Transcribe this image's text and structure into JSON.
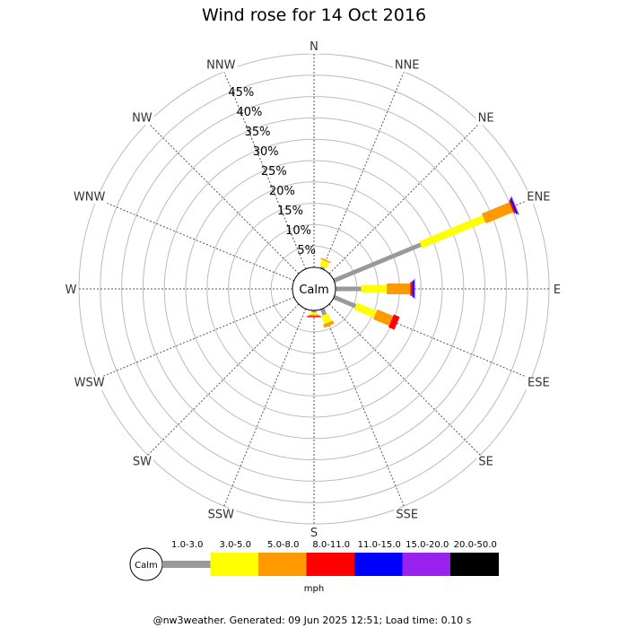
{
  "chart_data": {
    "type": "wind-rose",
    "title": "Wind rose for 14 Oct 2016",
    "directions": [
      "N",
      "NNE",
      "NE",
      "ENE",
      "E",
      "ESE",
      "SE",
      "SSE",
      "S",
      "SSW",
      "SW",
      "WSW",
      "W",
      "WNW",
      "NW",
      "NNW"
    ],
    "radial_ticks": [
      "5%",
      "10%",
      "15%",
      "20%",
      "25%",
      "30%",
      "35%",
      "40%",
      "45%"
    ],
    "radial_max": 50,
    "calm_label": "Calm",
    "units": "mph",
    "bins": [
      {
        "label": "1.0-3.0",
        "color": "#999999"
      },
      {
        "label": "3.0-5.0",
        "color": "#ffff00"
      },
      {
        "label": "5.0-8.0",
        "color": "#ff9900"
      },
      {
        "label": "8.0-11.0",
        "color": "#ff0000"
      },
      {
        "label": "11.0-15.0",
        "color": "#0000ff"
      },
      {
        "label": "15.0-20.0",
        "color": "#9922ee"
      },
      {
        "label": "20.0-50.0",
        "color": "#000000"
      }
    ],
    "series": [
      {
        "direction": "NNE",
        "values": [
          0.5,
          1.5,
          0.3,
          0,
          0,
          0,
          0
        ]
      },
      {
        "direction": "ENE",
        "values": [
          22,
          16,
          7,
          0.4,
          0.4,
          0.2,
          0
        ]
      },
      {
        "direction": "E",
        "values": [
          6,
          6,
          5.5,
          0.5,
          0.4,
          0.2,
          0
        ]
      },
      {
        "direction": "ESE",
        "values": [
          5.5,
          5,
          4,
          1.5,
          0,
          0,
          0
        ]
      },
      {
        "direction": "SSE",
        "values": [
          1.5,
          2,
          0.8,
          0,
          0,
          0,
          0
        ]
      },
      {
        "direction": "S",
        "values": [
          0.5,
          0.5,
          0.3,
          0.3,
          0,
          0,
          0
        ]
      }
    ]
  },
  "footer": "@nw3weather. Generated: 09 Jun 2025 12:51; Load time: 0.10 s"
}
